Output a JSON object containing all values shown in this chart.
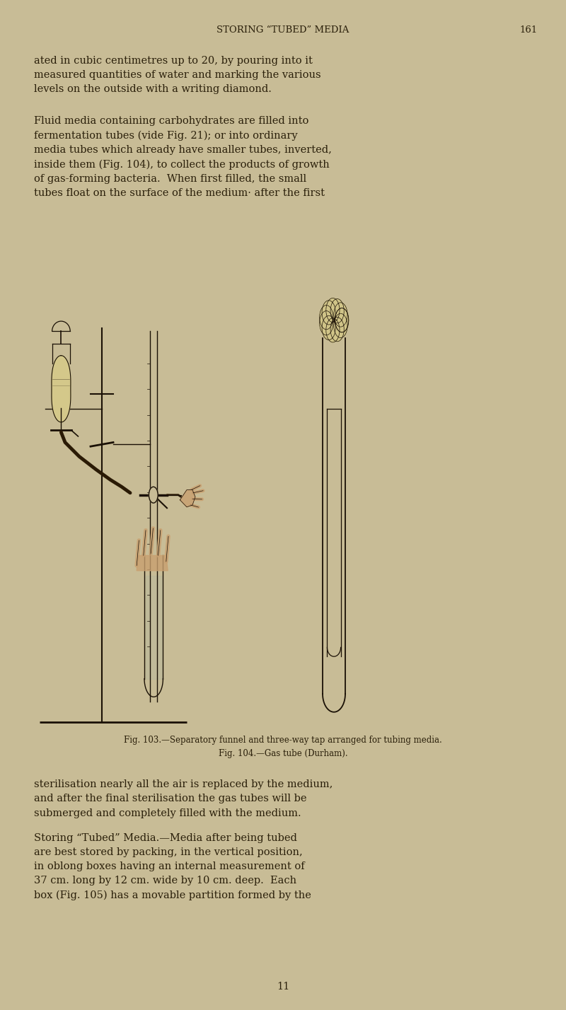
{
  "bg_color": "#c8bc96",
  "text_color": "#2a1f0a",
  "page_width": 8.0,
  "page_height": 14.28,
  "header_text": "STORING “TUBED” MEDIA",
  "header_page": "161",
  "body_text_1": "ated in cubic centimetres up to 20, by pouring into it\nmeasured quantities of water and marking the various\nlevels on the outside with a writing diamond.",
  "body_text_2": "Fluid media containing carbohydrates are filled into\nfermentation tubes (vide Fig. 21); or into ordinary\nmedia tubes which already have smaller tubes, inverted,\ninside them (Fig. 104), to collect the products of growth\nof gas-forming bacteria.  When first filled, the small\ntubes float on the surface of the medium· after the first",
  "caption_text": "Fig. 103.—Separatory funnel and three-way tap arranged for tubing media.\nFig. 104.—Gas tube (Durham).",
  "body_text_3": "sterilisation nearly all the air is replaced by the medium,\nand after the final sterilisation the gas tubes will be\nsubmerged and completely filled with the medium.",
  "body_text_4": "Storing “Tubed” Media.—Media after being tubed\nare best stored by packing, in the vertical position,\nin oblong boxes having an internal measurement of\n37 cm. long by 12 cm. wide by 10 cm. deep.  Each\nbox (Fig. 105) has a movable partition formed by the",
  "footer_text": "11",
  "font_size_header": 9.5,
  "font_size_body": 10.5,
  "font_size_caption": 8.5,
  "font_size_footer": 10.5
}
